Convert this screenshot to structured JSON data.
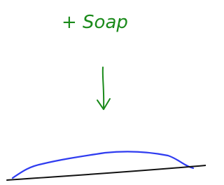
{
  "annotation": {
    "text": "+ Soap"
  }
}
